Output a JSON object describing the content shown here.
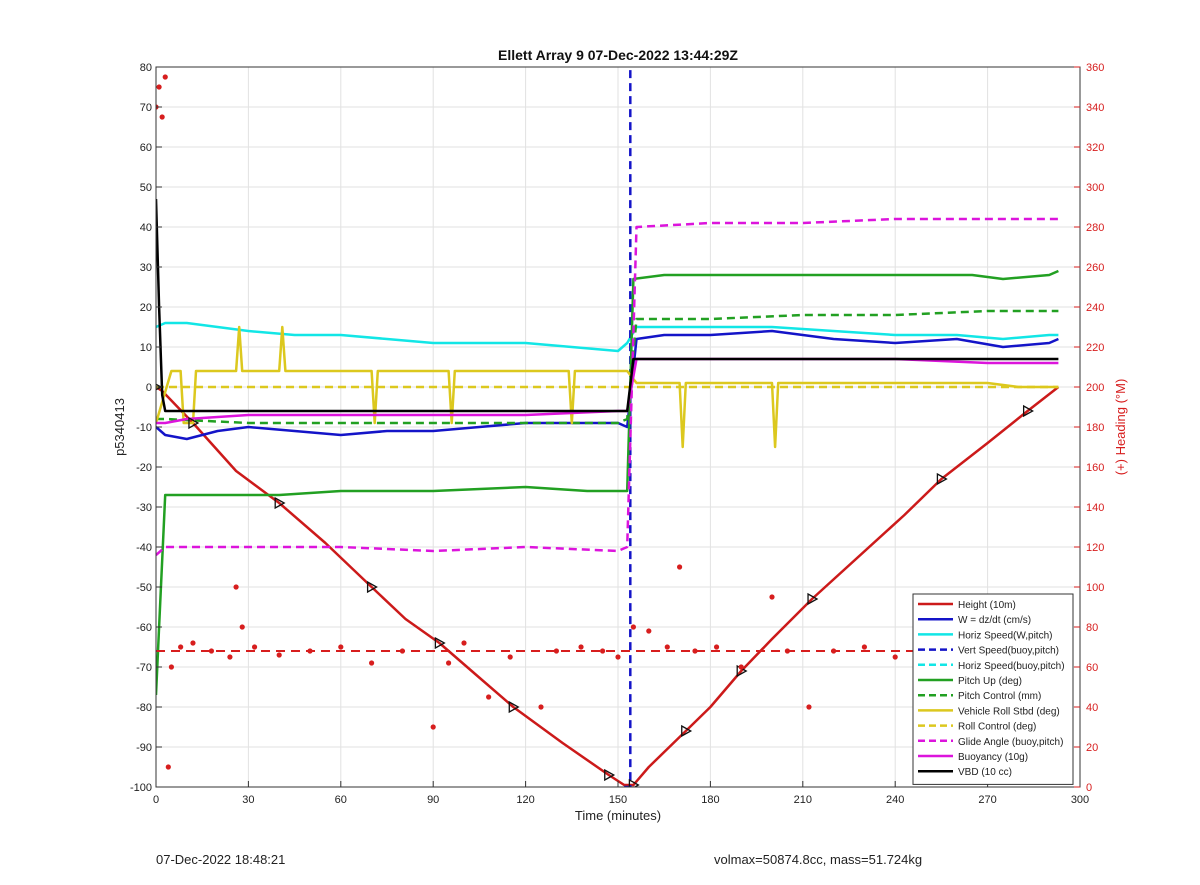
{
  "chart_data": {
    "type": "line",
    "title": "Ellett Array 9 07-Dec-2022 13:44:29Z",
    "xlabel": "Time (minutes)",
    "ylabel": "p5340413",
    "y2label": "(+) Heading (°M)",
    "xlim": [
      0,
      300
    ],
    "ylim": [
      -100,
      80
    ],
    "y2lim": [
      0,
      360
    ],
    "xticks": [
      "0",
      "30",
      "60",
      "90",
      "120",
      "150",
      "180",
      "210",
      "240",
      "270",
      "300"
    ],
    "yticks": [
      "-100",
      "-90",
      "-80",
      "-70",
      "-60",
      "-50",
      "-40",
      "-30",
      "-20",
      "-10",
      "0",
      "10",
      "20",
      "30",
      "40",
      "50",
      "60",
      "70",
      "80"
    ],
    "y2ticks": [
      "0",
      "20",
      "40",
      "60",
      "80",
      "100",
      "120",
      "140",
      "160",
      "180",
      "200",
      "220",
      "240",
      "260",
      "280",
      "300",
      "320",
      "340",
      "360"
    ],
    "grid": true,
    "legend_position": "bottom-right",
    "series": [
      {
        "name": "Height (10m)",
        "color": "#cc1a1a",
        "style": "solid",
        "x": [
          0,
          2,
          12,
          26,
          40,
          55,
          70,
          81,
          92,
          104,
          116,
          132,
          147,
          152,
          155,
          160,
          172,
          180,
          190,
          200,
          213,
          243,
          255,
          270,
          283,
          293
        ],
        "y": [
          0,
          -1,
          -9,
          -21,
          -29,
          -39,
          -50,
          -58,
          -64,
          -72,
          -80,
          -89,
          -97,
          -99.5,
          -99.5,
          -95,
          -86,
          -80,
          -71,
          -63,
          -53,
          -32,
          -23,
          -14,
          -6,
          0
        ]
      },
      {
        "name": "W = dz/dt (cm/s)",
        "color": "#1414c8",
        "style": "solid",
        "x": [
          0,
          3,
          10,
          20,
          30,
          45,
          60,
          75,
          90,
          105,
          120,
          135,
          150,
          153,
          156,
          165,
          180,
          200,
          220,
          240,
          260,
          275,
          290,
          293
        ],
        "y": [
          -10,
          -12,
          -13,
          -11,
          -10,
          -11,
          -12,
          -11,
          -11,
          -10,
          -9,
          -9,
          -9,
          -10,
          12,
          13,
          13,
          14,
          12,
          11,
          12,
          10,
          11,
          12
        ]
      },
      {
        "name": "Horiz Speed(W,pitch)",
        "color": "#12e6e6",
        "style": "solid",
        "x": [
          0,
          3,
          10,
          20,
          30,
          45,
          60,
          75,
          90,
          105,
          120,
          135,
          150,
          153,
          156,
          165,
          180,
          200,
          220,
          240,
          260,
          275,
          290,
          293
        ],
        "y": [
          15,
          16,
          16,
          15,
          14,
          13,
          13,
          12,
          11,
          11,
          11,
          10,
          9,
          11,
          15,
          15,
          15,
          15,
          14,
          13,
          13,
          12,
          13,
          13
        ]
      },
      {
        "name": "Vert Speed(buoy,pitch)",
        "color": "#1414c8",
        "style": "dashed",
        "x": [
          0,
          152,
          152,
          154,
          154,
          293
        ],
        "y": [
          null,
          null,
          -100,
          -100,
          80,
          null
        ]
      },
      {
        "name": "Horiz Speed(buoy,pitch)",
        "color": "#12e6e6",
        "style": "dashed",
        "x": [
          0,
          153,
          153,
          293
        ],
        "y": [
          null,
          null,
          80,
          null
        ]
      },
      {
        "name": "Pitch Up (deg)",
        "color": "#22a022",
        "style": "solid",
        "x": [
          0,
          1,
          3,
          10,
          40,
          60,
          90,
          120,
          140,
          150,
          153,
          155,
          165,
          180,
          200,
          220,
          250,
          265,
          275,
          290,
          293
        ],
        "y": [
          -77,
          -60,
          -27,
          -27,
          -27,
          -26,
          -26,
          -25,
          -26,
          -26,
          -26,
          27,
          28,
          28,
          28,
          28,
          28,
          28,
          27,
          28,
          29
        ]
      },
      {
        "name": "Pitch Control (mm)",
        "color": "#22a022",
        "style": "dashed",
        "x": [
          0,
          3,
          30,
          60,
          90,
          120,
          150,
          153,
          156,
          180,
          210,
          240,
          270,
          293
        ],
        "y": [
          -8,
          -8,
          -9,
          -9,
          -9,
          -9,
          -9,
          -8,
          17,
          17,
          18,
          18,
          19,
          19
        ]
      },
      {
        "name": "Vehicle Roll Stbd (deg)",
        "color": "#dcc81e",
        "style": "solid",
        "x": [
          0,
          5,
          8,
          9,
          12,
          13,
          20,
          26,
          27,
          28,
          40,
          41,
          42,
          55,
          70,
          71,
          72,
          85,
          95,
          96,
          97,
          120,
          130,
          134,
          135,
          136,
          150,
          153,
          156,
          170,
          171,
          172,
          190,
          200,
          201,
          202,
          220,
          250,
          270,
          280,
          290,
          293
        ],
        "y": [
          -9,
          4,
          4,
          -9,
          -9,
          4,
          4,
          4,
          15,
          4,
          4,
          15,
          4,
          4,
          4,
          -9,
          4,
          4,
          4,
          -9,
          4,
          4,
          4,
          4,
          -9,
          4,
          4,
          4,
          1,
          1,
          -15,
          1,
          1,
          1,
          -15,
          1,
          1,
          1,
          1,
          0,
          0,
          0
        ]
      },
      {
        "name": "Roll Control (deg)",
        "color": "#dcc81e",
        "style": "dashed",
        "x": [
          0,
          3,
          10,
          20,
          30,
          45,
          60,
          75,
          90,
          105,
          120,
          140,
          150,
          153,
          156,
          180,
          210,
          240,
          270,
          290,
          293
        ],
        "y": [
          0,
          0,
          0,
          0,
          0,
          0,
          0,
          0,
          0,
          0,
          0,
          0,
          0,
          0,
          0,
          0,
          0,
          0,
          0,
          0,
          0
        ]
      },
      {
        "name": "Glide Angle (buoy,pitch)",
        "color": "#dc14dc",
        "style": "dashed",
        "x": [
          0,
          3,
          10,
          30,
          60,
          90,
          120,
          150,
          153,
          156,
          180,
          210,
          240,
          270,
          290,
          293
        ],
        "y": [
          -42,
          -40,
          -40,
          -40,
          -40,
          -41,
          -40,
          -41,
          -40,
          40,
          41,
          41,
          42,
          42,
          42,
          42
        ]
      },
      {
        "name": "Buoyancy (10g)",
        "color": "#dc14dc",
        "style": "solid",
        "x": [
          0,
          3,
          10,
          30,
          60,
          90,
          120,
          150,
          153,
          156,
          180,
          210,
          240,
          270,
          290,
          293
        ],
        "y": [
          -9,
          -9,
          -8,
          -7,
          -7,
          -7,
          -7,
          -6,
          -6,
          7,
          7,
          7,
          7,
          6,
          6,
          6
        ]
      },
      {
        "name": "VBD (10 cc)",
        "color": "#000000",
        "style": "solid",
        "x": [
          0,
          1,
          2,
          3,
          30,
          60,
          90,
          120,
          150,
          153,
          155,
          180,
          210,
          240,
          270,
          290,
          293
        ],
        "y": [
          47,
          20,
          -2,
          -6,
          -6,
          -6,
          -6,
          -6,
          -6,
          -6,
          7,
          7,
          7,
          7,
          7,
          7,
          7
        ]
      }
    ],
    "heading_points": {
      "color": "#d71e1e",
      "target_heading": 68,
      "x": [
        0,
        1,
        2,
        3,
        4,
        5,
        8,
        12,
        18,
        24,
        26,
        28,
        32,
        40,
        50,
        60,
        70,
        80,
        90,
        95,
        100,
        108,
        115,
        125,
        130,
        138,
        145,
        150,
        155,
        160,
        166,
        170,
        175,
        182,
        190,
        200,
        205,
        212,
        220,
        230,
        240,
        250,
        260,
        270,
        280,
        290
      ],
      "y": [
        340,
        350,
        335,
        355,
        10,
        60,
        70,
        72,
        68,
        65,
        100,
        80,
        70,
        66,
        68,
        70,
        62,
        68,
        30,
        62,
        72,
        45,
        65,
        40,
        68,
        70,
        68,
        65,
        80,
        78,
        70,
        110,
        68,
        70,
        60,
        95,
        68,
        40,
        68,
        70,
        65,
        68,
        70,
        66,
        68,
        70
      ]
    }
  },
  "footer": {
    "left": "07-Dec-2022 18:48:21",
    "right": "volmax=50874.8cc, mass=51.724kg"
  }
}
